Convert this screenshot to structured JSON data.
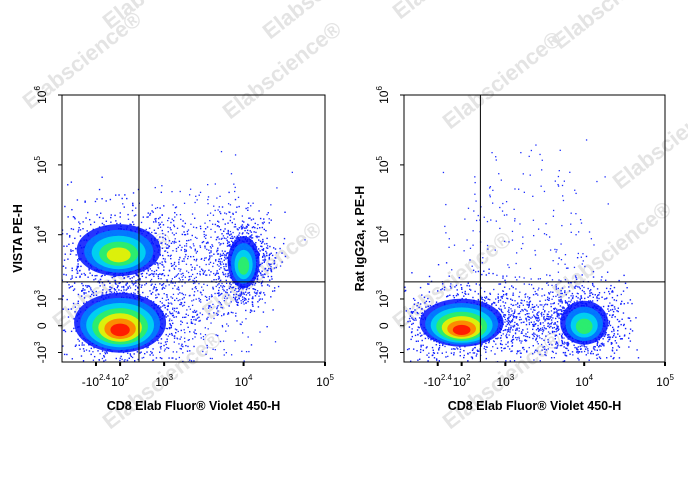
{
  "watermark": "Elabscience®",
  "chart_data": [
    {
      "type": "density",
      "scale": "biexponential",
      "x_label": "CD8 Elab Fluor® Violet 450-H",
      "y_label": "VISTA PE-H",
      "xlim": [
        -1000,
        100000
      ],
      "ylim": [
        -1500,
        1000000
      ],
      "xticks": [
        {
          "value": -251,
          "label": "-10",
          "power": "2.4"
        },
        {
          "value": 100,
          "label": "10",
          "power": "2"
        },
        {
          "value": 1000,
          "label": "10",
          "power": "3"
        },
        {
          "value": 10000,
          "label": "10",
          "power": "4"
        },
        {
          "value": 100000,
          "label": "10",
          "power": "5"
        }
      ],
      "yticks": [
        {
          "value": -1000,
          "label": "-10",
          "power": "3"
        },
        0,
        {
          "value": 1000,
          "label": "10",
          "power": "3"
        },
        {
          "value": 10000,
          "label": "10",
          "power": "4"
        },
        {
          "value": 100000,
          "label": "10",
          "power": "5"
        },
        {
          "value": 1000000,
          "label": "10",
          "power": "6"
        }
      ],
      "gates": {
        "x": 400,
        "y": 2000
      },
      "clusters": [
        {
          "x": 100,
          "y": 100
        },
        {
          "x": 80,
          "y": 6000
        },
        {
          "x": 10000,
          "y": 4000
        }
      ]
    },
    {
      "type": "density",
      "scale": "biexponential",
      "x_label": "CD8 Elab Fluor® Violet 450-H",
      "y_label": "Rat IgG2a, κ PE-H",
      "xlim": [
        -1000,
        100000
      ],
      "ylim": [
        -1500,
        1000000
      ],
      "xticks": [
        {
          "value": -251,
          "label": "-10",
          "power": "2.4"
        },
        {
          "value": 100,
          "label": "10",
          "power": "2"
        },
        {
          "value": 1000,
          "label": "10",
          "power": "3"
        },
        {
          "value": 10000,
          "label": "10",
          "power": "4"
        },
        {
          "value": 100000,
          "label": "10",
          "power": "5"
        }
      ],
      "yticks": [
        {
          "value": -1000,
          "label": "-10",
          "power": "3"
        },
        0,
        {
          "value": 1000,
          "label": "10",
          "power": "3"
        },
        {
          "value": 10000,
          "label": "10",
          "power": "4"
        },
        {
          "value": 100000,
          "label": "10",
          "power": "5"
        },
        {
          "value": 1000000,
          "label": "10",
          "power": "6"
        }
      ],
      "gates": {
        "x": 400,
        "y": 2000
      },
      "clusters": [
        {
          "x": 100,
          "y": 100
        },
        {
          "x": 10000,
          "y": 100
        }
      ]
    }
  ]
}
